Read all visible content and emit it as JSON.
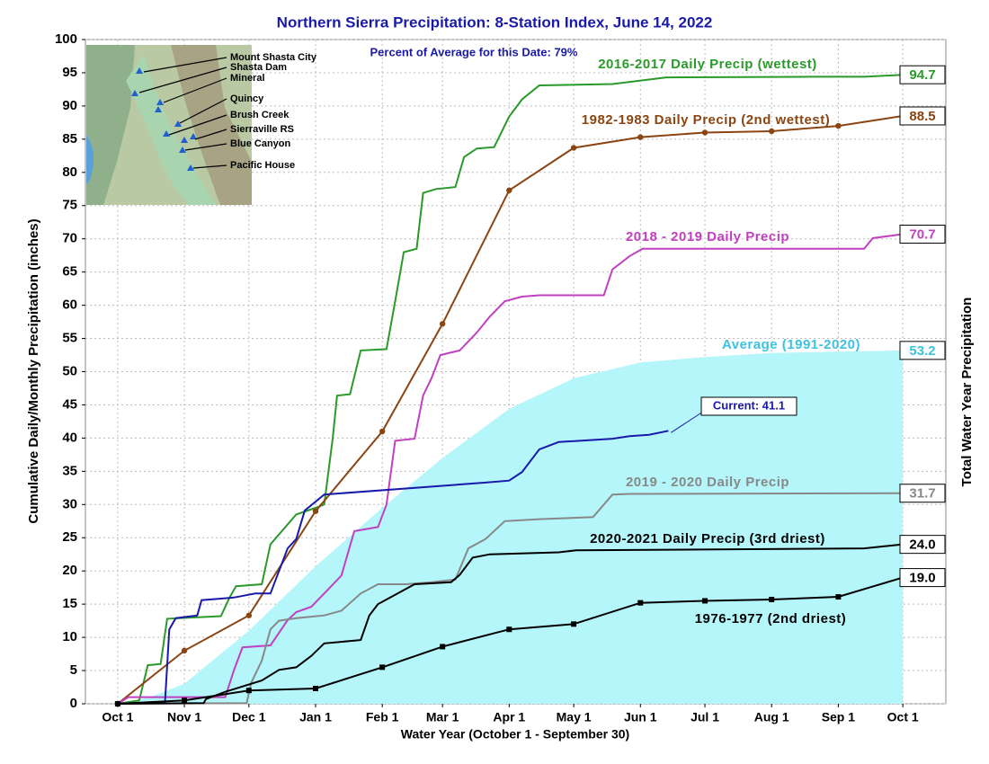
{
  "chart_data": {
    "type": "line",
    "title": "Northern Sierra Precipitation: 8-Station Index, June 14, 2022",
    "subtitle": "Percent of Average for this Date: 79%",
    "y_label": "Cumulative Daily/Monthly Precipitation (inches)",
    "y2_label": "Total Water Year Precipitation",
    "x_label": "Water Year (October 1 - September 30)",
    "xlim": [
      -15,
      385
    ],
    "ylim": [
      0,
      100
    ],
    "xticks": [
      {
        "value": 0,
        "label": "Oct 1"
      },
      {
        "value": 31,
        "label": "Nov 1"
      },
      {
        "value": 61,
        "label": "Dec 1"
      },
      {
        "value": 92,
        "label": "Jan 1"
      },
      {
        "value": 123,
        "label": "Feb 1"
      },
      {
        "value": 151,
        "label": "Mar 1"
      },
      {
        "value": 182,
        "label": "Apr 1"
      },
      {
        "value": 212,
        "label": "May 1"
      },
      {
        "value": 243,
        "label": "Jun 1"
      },
      {
        "value": 273,
        "label": "Jul 1"
      },
      {
        "value": 304,
        "label": "Aug 1"
      },
      {
        "value": 335,
        "label": "Sep 1"
      },
      {
        "value": 365,
        "label": "Oct 1"
      }
    ],
    "yticks": [
      0,
      5,
      10,
      15,
      20,
      25,
      30,
      35,
      40,
      45,
      50,
      55,
      60,
      65,
      70,
      75,
      80,
      85,
      90,
      95,
      100
    ],
    "grid": true,
    "stations": [
      "Mount Shasta City",
      "Shasta Dam",
      "Mineral",
      "Quincy",
      "Brush Creek",
      "Sierraville RS",
      "Blue Canyon",
      "Pacific House"
    ],
    "series": [
      {
        "name": "Average (1991-2020)",
        "color": "#b4f6fa",
        "label_color": "#3cc3df",
        "area": true,
        "x": [
          0,
          15,
          31,
          61,
          92,
          123,
          151,
          182,
          212,
          243,
          273,
          304,
          335,
          365
        ],
        "values": [
          0,
          1,
          3,
          11,
          20.7,
          29.5,
          37,
          44.4,
          49,
          51.4,
          52.2,
          52.8,
          53,
          53.2
        ],
        "total": 53.2
      },
      {
        "name": "2016-2017 Daily Precip (wettest)",
        "color": "#2a9a2a",
        "x": [
          0,
          10,
          14,
          20,
          23,
          48,
          52,
          55,
          67,
          71,
          83,
          92,
          96,
          100,
          102,
          108,
          113,
          125,
          129,
          133,
          139,
          142,
          148,
          157,
          161,
          167,
          175,
          182,
          188,
          196,
          230,
          255,
          322,
          347,
          365
        ],
        "values": [
          0,
          0.5,
          5.8,
          6,
          12.8,
          13.2,
          16,
          17.7,
          18,
          24,
          28.5,
          29.5,
          30,
          40,
          46.4,
          46.6,
          53.2,
          53.4,
          60.6,
          68,
          68.5,
          76.9,
          77.5,
          77.8,
          82.3,
          83.6,
          83.8,
          88.4,
          91,
          93.1,
          93.3,
          94.3,
          94.4,
          94.4,
          94.7
        ],
        "total": 94.7
      },
      {
        "name": "1982-1983 Daily Precip (2nd wettest)",
        "color": "#8b4513",
        "marker": "circle",
        "x": [
          0,
          31,
          61,
          92,
          123,
          151,
          182,
          212,
          243,
          273,
          304,
          335,
          365
        ],
        "values": [
          0,
          8,
          13.3,
          29,
          41,
          57.2,
          77.3,
          83.7,
          85.3,
          86,
          86.2,
          87,
          88.5
        ],
        "total": 88.5
      },
      {
        "name": "2018 - 2019 Daily Precip",
        "color": "#c040c0",
        "x": [
          0,
          5,
          50,
          54,
          58,
          71,
          79,
          83,
          90,
          96,
          104,
          110,
          121,
          125,
          129,
          138,
          142,
          146,
          150,
          159,
          167,
          173,
          180,
          188,
          196,
          226,
          230,
          238,
          244,
          347,
          351,
          365
        ],
        "values": [
          0,
          1,
          1,
          5,
          8.5,
          8.8,
          12.6,
          13.8,
          14.6,
          16.6,
          19.3,
          26,
          26.6,
          30,
          39.6,
          39.9,
          46.4,
          49.1,
          52.5,
          53.2,
          55.9,
          58.3,
          60.6,
          61.3,
          61.5,
          61.5,
          65.4,
          67.4,
          68.5,
          68.5,
          70.1,
          70.7
        ],
        "total": 70.7
      },
      {
        "name": "Current: 41.1",
        "color": "#1a1aaa",
        "x": [
          0,
          22,
          24,
          27,
          37,
          39,
          54,
          64,
          71,
          79,
          83,
          87,
          96,
          171,
          182,
          188,
          196,
          205,
          230,
          238,
          247,
          256
        ],
        "values": [
          0,
          0.2,
          11.2,
          12.9,
          13.3,
          15.6,
          16,
          16.6,
          16.6,
          23.4,
          24.8,
          29.1,
          31.5,
          33.3,
          33.6,
          34.9,
          38.3,
          39.4,
          39.9,
          40.3,
          40.5,
          41.1
        ]
      },
      {
        "name": "2019 - 2020 Daily Precip",
        "color": "#888888",
        "x": [
          0,
          60,
          62,
          67,
          71,
          75,
          83,
          96,
          104,
          113,
          121,
          134,
          146,
          157,
          163,
          171,
          180,
          196,
          221,
          230,
          238,
          365
        ],
        "values": [
          0,
          0.1,
          3.1,
          6.5,
          11.2,
          12.5,
          12.9,
          13.3,
          14,
          16.6,
          18,
          18,
          18.3,
          18.7,
          23.4,
          24.8,
          27.5,
          27.8,
          28.1,
          31.5,
          31.6,
          31.7
        ],
        "total": 31.7
      },
      {
        "name": "2020-2021 Daily Precip (3rd driest)",
        "color": "#000000",
        "x": [
          0,
          40,
          41,
          50,
          67,
          75,
          83,
          90,
          96,
          113,
          117,
          121,
          129,
          138,
          155,
          159,
          165,
          173,
          205,
          213,
          347,
          365
        ],
        "values": [
          0,
          0.1,
          0.7,
          1.8,
          3.5,
          5.1,
          5.5,
          7.2,
          9.1,
          9.6,
          13.3,
          15,
          16.4,
          18,
          18.3,
          19.4,
          22,
          22.5,
          22.8,
          23.1,
          23.4,
          24
        ],
        "total": 24,
        "total_label": "24.0"
      },
      {
        "name": "1976-1977 (2nd driest)",
        "color": "#000000",
        "marker": "square",
        "x": [
          0,
          31,
          61,
          92,
          123,
          151,
          182,
          212,
          243,
          273,
          304,
          335,
          365
        ],
        "values": [
          0,
          0.5,
          2,
          2.3,
          5.5,
          8.6,
          11.2,
          12,
          15.2,
          15.5,
          15.7,
          16.1,
          19
        ],
        "total": 19,
        "total_label": "19.0"
      }
    ]
  }
}
